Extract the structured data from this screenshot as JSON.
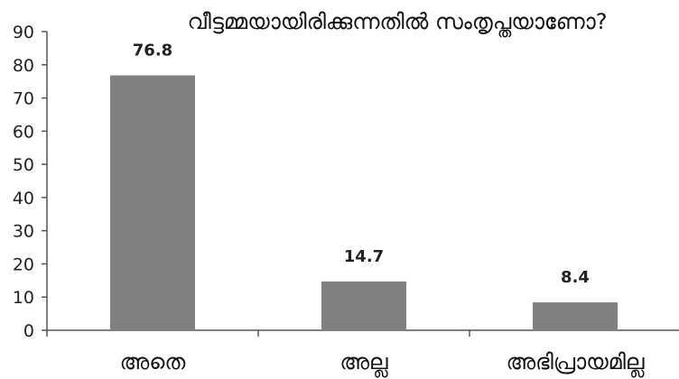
{
  "chart_data": {
    "type": "bar",
    "title": "വീട്ടമ്മയായിരിക്കുന്നതിൽ  സംതൃപ്തയാണോ?",
    "categories": [
      "അതെ",
      "അല്ല",
      "അഭിപ്രായമില്ല"
    ],
    "values": [
      76.8,
      14.7,
      8.4
    ],
    "data_labels": [
      "76.8",
      "14.7",
      "8.4"
    ],
    "y_ticks": [
      "0",
      "10",
      "20",
      "30",
      "40",
      "50",
      "60",
      "70",
      "80",
      "90"
    ],
    "ylim": [
      0,
      90
    ],
    "xlabel": "",
    "ylabel": "",
    "grid": false,
    "legend": "none",
    "bar_color": "#808080",
    "axis_color": "#555555"
  }
}
